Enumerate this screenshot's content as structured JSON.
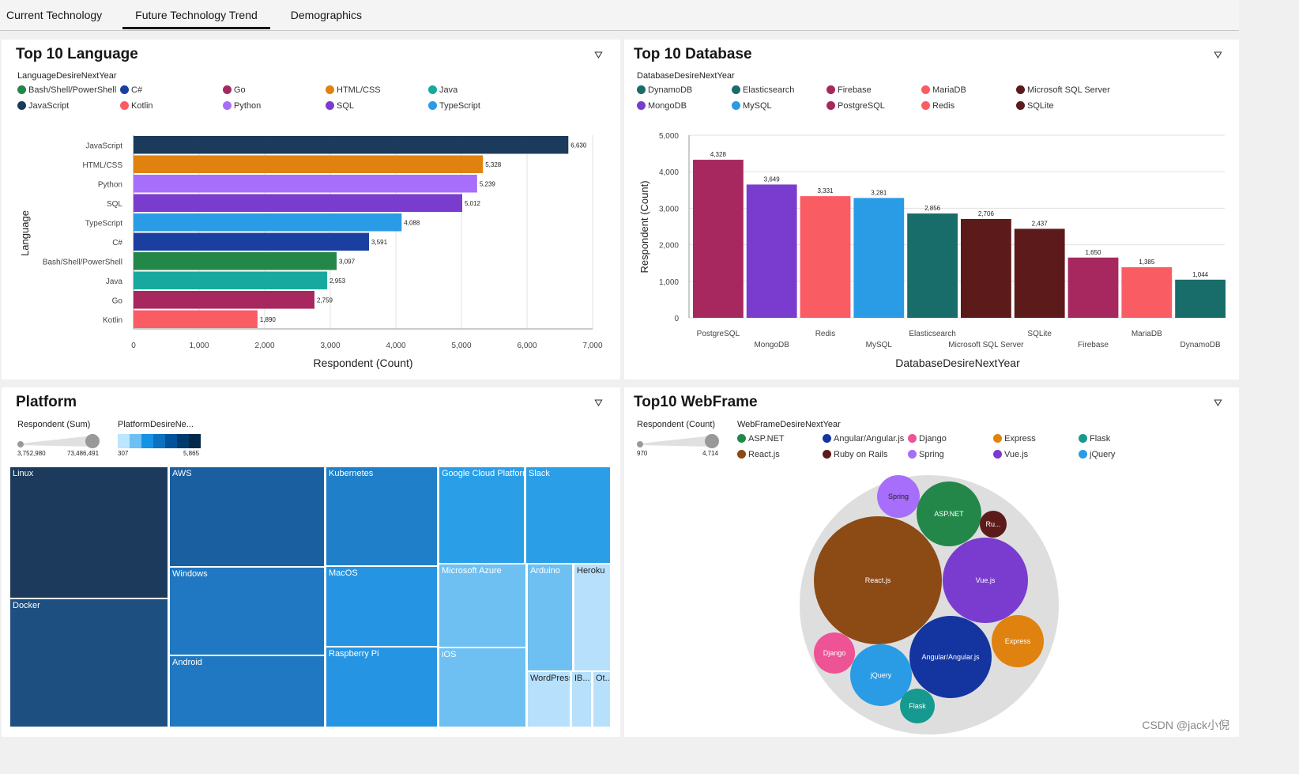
{
  "tabs": [
    {
      "label": "Current Technology"
    },
    {
      "label": "Future Technology Trend",
      "active": true
    },
    {
      "label": "Demographics"
    }
  ],
  "language": {
    "title": "Top 10 Language",
    "legend_title": "LanguageDesireNextYear",
    "legend": [
      {
        "name": "Bash/Shell/PowerShell",
        "color": "#24874a"
      },
      {
        "name": "C#",
        "color": "#1a3fa0"
      },
      {
        "name": "Go",
        "color": "#a6285f"
      },
      {
        "name": "HTML/CSS",
        "color": "#e0820f"
      },
      {
        "name": "Java",
        "color": "#17a99f"
      },
      {
        "name": "JavaScript",
        "color": "#1b3a5c"
      },
      {
        "name": "Kotlin",
        "color": "#fa5c64"
      },
      {
        "name": "Python",
        "color": "#a66efa"
      },
      {
        "name": "SQL",
        "color": "#7a3ccf"
      },
      {
        "name": "TypeScript",
        "color": "#2a9be5"
      }
    ],
    "chart_data": {
      "type": "bar",
      "orientation": "horizontal",
      "categories": [
        "JavaScript",
        "HTML/CSS",
        "Python",
        "SQL",
        "TypeScript",
        "C#",
        "Bash/Shell/PowerShell",
        "Java",
        "Go",
        "Kotlin"
      ],
      "values": [
        6630,
        5328,
        5239,
        5012,
        4088,
        3591,
        3097,
        2953,
        2759,
        1890
      ],
      "value_labels": [
        "6,630",
        "5,328",
        "5,239",
        "5,012",
        "4,088",
        "3,591",
        "3,097",
        "2,953",
        "2,759",
        "1,890"
      ],
      "colors": [
        "#1b3a5c",
        "#e0820f",
        "#a66efa",
        "#7a3ccf",
        "#2a9be5",
        "#1a3fa0",
        "#24874a",
        "#17a99f",
        "#a6285f",
        "#fa5c64"
      ],
      "xlabel": "Respondent (Count)",
      "ylabel": "Language",
      "xlim": [
        0,
        7000
      ],
      "xticks": [
        "0",
        "1,000",
        "2,000",
        "3,000",
        "4,000",
        "5,000",
        "6,000",
        "7,000"
      ],
      "grid": true
    }
  },
  "database": {
    "title": "Top 10 Database",
    "legend_title": "DatabaseDesireNextYear",
    "legend": [
      {
        "name": "DynamoDB",
        "color": "#186d6b"
      },
      {
        "name": "Elasticsearch",
        "color": "#186d6b"
      },
      {
        "name": "Firebase",
        "color": "#a6285f"
      },
      {
        "name": "MariaDB",
        "color": "#fa5c64"
      },
      {
        "name": "Microsoft SQL Server",
        "color": "#5c1a1a"
      },
      {
        "name": "MongoDB",
        "color": "#7a3ccf"
      },
      {
        "name": "MySQL",
        "color": "#2a9be5"
      },
      {
        "name": "PostgreSQL",
        "color": "#a6285f"
      },
      {
        "name": "Redis",
        "color": "#fa5c64"
      },
      {
        "name": "SQLite",
        "color": "#5c1a1a"
      }
    ],
    "chart_data": {
      "type": "bar",
      "categories": [
        "PostgreSQL",
        "MongoDB",
        "Redis",
        "MySQL",
        "Elasticsearch",
        "Microsoft SQL Server",
        "SQLite",
        "Firebase",
        "MariaDB",
        "DynamoDB"
      ],
      "values": [
        4328,
        3649,
        3331,
        3281,
        2856,
        2706,
        2437,
        1650,
        1385,
        1044
      ],
      "value_labels": [
        "4,328",
        "3,649",
        "3,331",
        "3,281",
        "2,856",
        "2,706",
        "2,437",
        "1,650",
        "1,385",
        "1,044"
      ],
      "colors": [
        "#a6285f",
        "#7a3ccf",
        "#fa5c64",
        "#2a9be5",
        "#186d6b",
        "#5c1a1a",
        "#5c1a1a",
        "#a6285f",
        "#fa5c64",
        "#186d6b"
      ],
      "xlabel": "DatabaseDesireNextYear",
      "ylabel": "Respondent (Count)",
      "ylim": [
        0,
        5000
      ],
      "yticks": [
        "0",
        "1,000",
        "2,000",
        "3,000",
        "4,000",
        "5,000"
      ],
      "grid": true
    }
  },
  "platform": {
    "title": "Platform",
    "size_legend_title": "Respondent (Sum)",
    "size_min": "3,752,980",
    "size_max": "73,486,491",
    "color_legend_title": "PlatformDesireNe...",
    "color_min": "307",
    "color_max": "5,865",
    "tiles": [
      {
        "name": "Linux",
        "color": "#1b3a5c"
      },
      {
        "name": "Docker",
        "color": "#1d4f80"
      },
      {
        "name": "AWS",
        "color": "#1a5fa0"
      },
      {
        "name": "Windows",
        "color": "#1f78c1"
      },
      {
        "name": "Android",
        "color": "#1f78c1"
      },
      {
        "name": "Kubernetes",
        "color": "#1f7fc8"
      },
      {
        "name": "MacOS",
        "color": "#2595e3"
      },
      {
        "name": "Raspberry Pi",
        "color": "#2595e3"
      },
      {
        "name": "Google Cloud Platform",
        "color": "#2a9fe8"
      },
      {
        "name": "Slack",
        "color": "#2a9fe8"
      },
      {
        "name": "Microsoft Azure",
        "color": "#6ec0f2"
      },
      {
        "name": "iOS",
        "color": "#6ec0f2"
      },
      {
        "name": "Arduino",
        "color": "#6ec0f2"
      },
      {
        "name": "Heroku",
        "color": "#b6e0fb"
      },
      {
        "name": "WordPress",
        "color": "#b6e0fb"
      },
      {
        "name": "IB...",
        "color": "#b6e0fb"
      },
      {
        "name": "Ot...",
        "color": "#b6e0fb"
      }
    ]
  },
  "webframe": {
    "title": "Top10 WebFrame",
    "size_legend_title": "Respondent (Count)",
    "size_min": "970",
    "size_max": "4,714",
    "legend_title": "WebFrameDesireNextYear",
    "legend": [
      {
        "name": "ASP.NET",
        "color": "#24874a"
      },
      {
        "name": "Angular/Angular.js",
        "color": "#1435a0"
      },
      {
        "name": "Django",
        "color": "#ee5396"
      },
      {
        "name": "Express",
        "color": "#e0820f"
      },
      {
        "name": "Flask",
        "color": "#16998f"
      },
      {
        "name": "React.js",
        "color": "#8c4a15"
      },
      {
        "name": "Ruby on Rails",
        "color": "#5c1a1a"
      },
      {
        "name": "Spring",
        "color": "#a66efa"
      },
      {
        "name": "Vue.js",
        "color": "#7a3ccf"
      },
      {
        "name": "jQuery",
        "color": "#2a9be5"
      }
    ],
    "bubbles": [
      {
        "label": "Spring",
        "color": "#a66efa"
      },
      {
        "label": "ASP.NET",
        "color": "#24874a"
      },
      {
        "label": "Ru...",
        "color": "#5c1a1a"
      },
      {
        "label": "React.js",
        "color": "#8c4a15"
      },
      {
        "label": "Vue.js",
        "color": "#7a3ccf"
      },
      {
        "label": "Express",
        "color": "#e0820f"
      },
      {
        "label": "Angular/Angular.js",
        "color": "#1435a0"
      },
      {
        "label": "Django",
        "color": "#ee5396"
      },
      {
        "label": "jQuery",
        "color": "#2a9be5"
      },
      {
        "label": "Flask",
        "color": "#16998f"
      }
    ]
  },
  "watermark": "CSDN @jack小倪"
}
